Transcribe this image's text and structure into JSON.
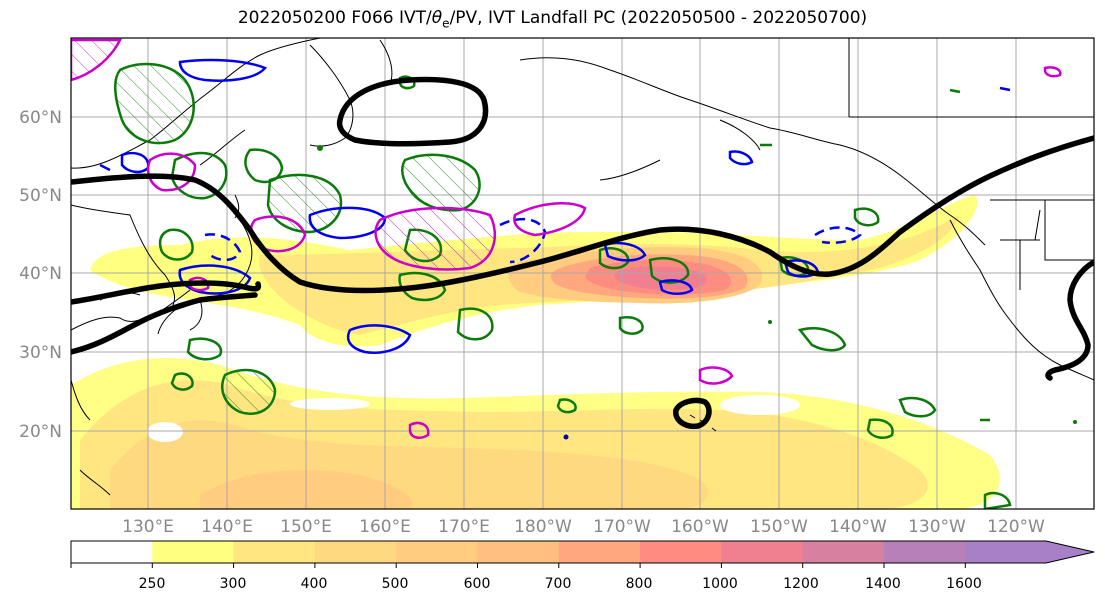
{
  "title": {
    "prefix": "2022050200 F066 IVT/",
    "theta": "θ",
    "theta_sub": "e",
    "suffix": "/PV, IVT Landfall PC (2022050500 - 2022050700)"
  },
  "map": {
    "lat_labels": [
      "20°N",
      "30°N",
      "40°N",
      "50°N",
      "60°N"
    ],
    "lon_labels": [
      "130°E",
      "140°E",
      "150°E",
      "160°E",
      "170°E",
      "180°W",
      "170°W",
      "160°W",
      "150°W",
      "140°W",
      "130°W",
      "120°W"
    ],
    "fields": [
      "IVT shading",
      "theta-e contours (green)",
      "PV contours (blue/magenta)",
      "IVT landfall PC contour (black)"
    ]
  },
  "colorbar": {
    "ticks": [
      "250",
      "300",
      "400",
      "500",
      "600",
      "700",
      "800",
      "1000",
      "1200",
      "1400",
      "1600"
    ],
    "colors": [
      "#ffffff",
      "#ffff80",
      "#ffe680",
      "#ffd980",
      "#ffcc80",
      "#ffbf80",
      "#ffa880",
      "#ff8c80",
      "#f08090",
      "#d880a0",
      "#b880b8",
      "#a880c8"
    ]
  }
}
